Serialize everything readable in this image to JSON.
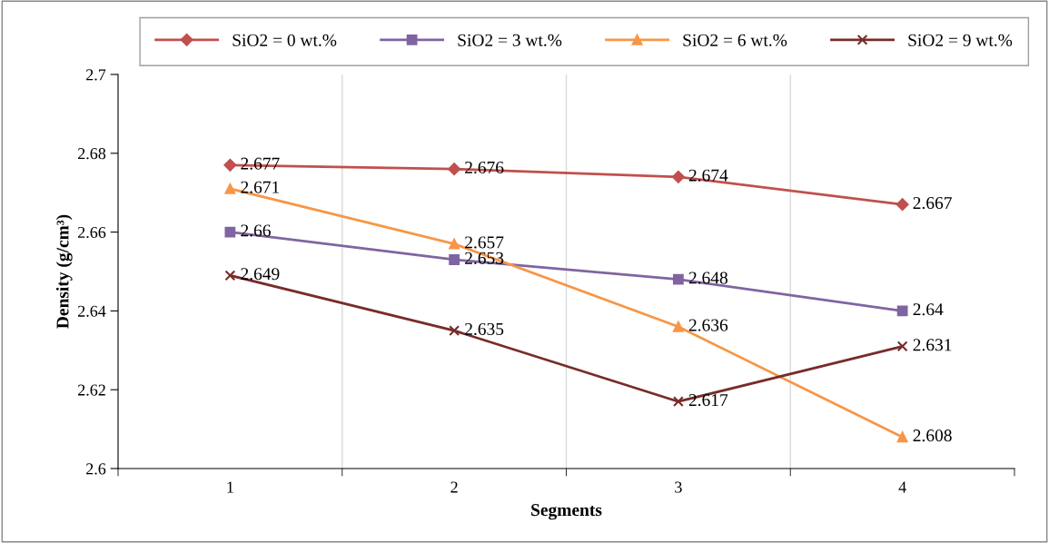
{
  "chart_data": {
    "type": "line",
    "xlabel": "Segments",
    "ylabel": "Density (g/cm³)",
    "categories": [
      "1",
      "2",
      "3",
      "4"
    ],
    "series": [
      {
        "name": "SiO2 = 0 wt.%",
        "color": "#c0504d",
        "marker": "diamond",
        "values": [
          2.677,
          2.676,
          2.674,
          2.667
        ]
      },
      {
        "name": "SiO2 = 3 wt.%",
        "color": "#8064a2",
        "marker": "square",
        "values": [
          2.66,
          2.653,
          2.648,
          2.64
        ]
      },
      {
        "name": "SiO2 = 6 wt.%",
        "color": "#f79646",
        "marker": "triangle",
        "values": [
          2.671,
          2.657,
          2.636,
          2.608
        ]
      },
      {
        "name": "SiO2 = 9 wt.%",
        "color": "#772c2a",
        "marker": "cross",
        "values": [
          2.649,
          2.635,
          2.617,
          2.631
        ]
      }
    ],
    "ylim": [
      2.6,
      2.7
    ],
    "yticks": [
      2.6,
      2.62,
      2.64,
      2.66,
      2.68,
      2.7
    ],
    "grid": "x",
    "legend": "top",
    "data_labels": true,
    "line_style": "solid"
  }
}
